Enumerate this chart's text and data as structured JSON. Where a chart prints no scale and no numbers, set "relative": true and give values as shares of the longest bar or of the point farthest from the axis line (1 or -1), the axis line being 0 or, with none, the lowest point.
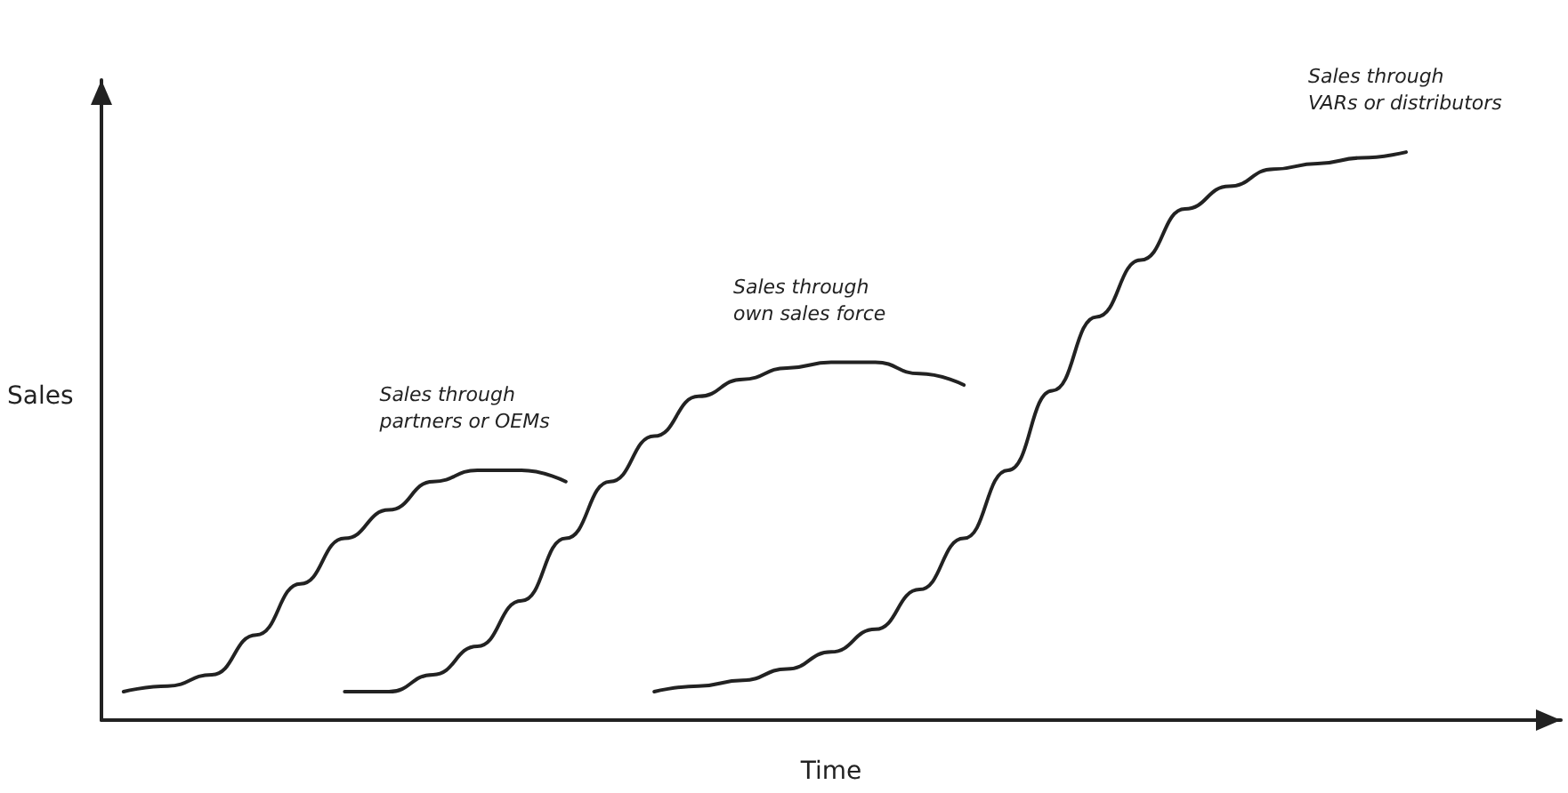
{
  "chart_data": {
    "type": "line",
    "relative": true,
    "xlabel": "Time",
    "ylabel": "Sales",
    "categories": [
      null,
      null,
      null,
      null,
      null,
      null,
      null,
      null,
      null,
      null,
      null,
      null,
      null,
      null,
      null,
      null,
      null,
      null,
      null,
      null,
      null,
      null,
      null,
      null,
      null,
      null,
      null,
      null,
      null,
      null,
      null,
      null,
      null
    ],
    "series": [
      {
        "color": "#222222",
        "values": [
          0.05,
          0.06,
          0.08,
          0.15,
          0.24,
          0.32,
          0.37,
          0.42,
          0.44,
          0.44,
          0.42,
          null,
          null,
          null,
          null,
          null,
          null,
          null,
          null,
          null,
          null,
          null,
          null,
          null,
          null,
          null,
          null,
          null,
          null,
          null,
          null,
          null,
          null
        ]
      },
      {
        "color": "#222222",
        "values": [
          null,
          null,
          null,
          null,
          null,
          0.05,
          0.05,
          0.08,
          0.13,
          0.21,
          0.32,
          0.42,
          0.5,
          0.57,
          0.6,
          0.62,
          0.63,
          0.63,
          0.61,
          0.59,
          null,
          null,
          null,
          null,
          null,
          null,
          null,
          null,
          null,
          null,
          null,
          null,
          null
        ]
      },
      {
        "color": "#222222",
        "values": [
          null,
          null,
          null,
          null,
          null,
          null,
          null,
          null,
          null,
          null,
          null,
          null,
          0.05,
          0.06,
          0.07,
          0.09,
          0.12,
          0.16,
          0.23,
          0.32,
          0.44,
          0.58,
          0.71,
          0.81,
          0.9,
          0.94,
          0.97,
          0.98,
          0.99,
          1,
          null,
          null,
          null
        ]
      }
    ],
    "annotations": [
      "Sales through\npartners or OEMs",
      "Sales through\nown sales force",
      "Sales through\nVARs or distributors"
    ],
    "marker": "none",
    "line_style": "solid",
    "grid": false
  }
}
